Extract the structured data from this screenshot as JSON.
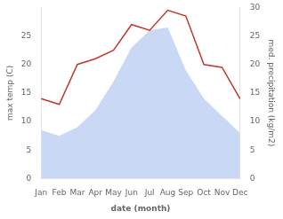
{
  "chart_data": {
    "type": "line",
    "categories": [
      "Jan",
      "Feb",
      "Mar",
      "Apr",
      "May",
      "Jun",
      "Jul",
      "Aug",
      "Sep",
      "Oct",
      "Nov",
      "Dec"
    ],
    "xlabel": "date (month)",
    "ylabel": "max temp (C)",
    "y2label": "med. precipitation (kg/m2)",
    "ylim": [
      0,
      30
    ],
    "yticks": [
      0,
      5,
      10,
      15,
      20,
      25
    ],
    "y2lim": [
      0,
      30
    ],
    "y2ticks": [
      0,
      5,
      10,
      15,
      20,
      25,
      30
    ],
    "grid": false,
    "series": [
      {
        "type": "area",
        "color": "#c8d8f5",
        "values": [
          8.5,
          7.5,
          9.0,
          12.0,
          17.0,
          23.0,
          26.0,
          26.5,
          19.0,
          14.0,
          11.0,
          8.0
        ]
      },
      {
        "type": "line",
        "color": "#c0392b",
        "axis": "y2",
        "values": [
          14.0,
          13.0,
          20.0,
          21.0,
          22.5,
          27.0,
          26.0,
          29.5,
          28.5,
          20.0,
          19.5,
          14.0
        ]
      }
    ]
  }
}
